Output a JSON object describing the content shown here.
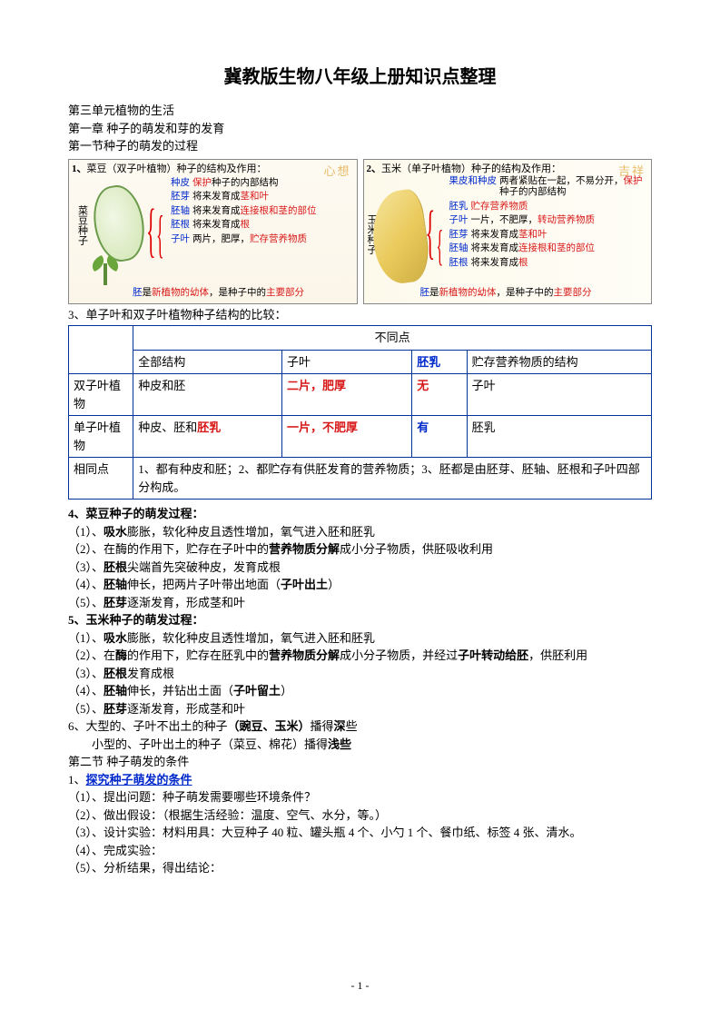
{
  "doc": {
    "title": "冀教版生物八年级上册知识点整理",
    "unit": "第三单元植物的生活",
    "chapter": "第一章 种子的萌发和芽的发育",
    "section1": "第一节种子的萌发的过程",
    "page_number": "- 1 -"
  },
  "colors": {
    "blue": "#0029cc",
    "red": "#d81818",
    "table_border": "#003399",
    "watermark": "#e0a030"
  },
  "diagram": {
    "left": {
      "title_num": "1、",
      "title_a": "菜豆（双子叶植物）种子的结构及作用：",
      "watermark": "心想",
      "side_label": "菜豆种子",
      "items": [
        {
          "label": "种皮",
          "lc": "blue",
          "desc_parts": [
            {
              "t": "保护",
              "c": "red"
            },
            {
              "t": "种子的内部结构",
              "c": "black"
            }
          ]
        },
        {
          "label": "胚芽",
          "lc": "blue",
          "desc_parts": [
            {
              "t": "将来发育成",
              "c": "black"
            },
            {
              "t": "茎和叶",
              "c": "red"
            }
          ]
        },
        {
          "label": "胚轴",
          "lc": "blue",
          "desc_parts": [
            {
              "t": "将来发育成",
              "c": "black"
            },
            {
              "t": "连接根和茎的部位",
              "c": "red"
            }
          ]
        },
        {
          "label": "胚根",
          "lc": "blue",
          "desc_parts": [
            {
              "t": "将来发育成",
              "c": "black"
            },
            {
              "t": "根",
              "c": "red"
            }
          ]
        },
        {
          "label": "子叶",
          "lc": "blue",
          "desc_parts": [
            {
              "t": "两片，肥厚，",
              "c": "black"
            },
            {
              "t": "贮存营养物质",
              "c": "red"
            }
          ]
        }
      ],
      "footer_parts": [
        {
          "t": "胚",
          "c": "blue"
        },
        {
          "t": "是",
          "c": "black"
        },
        {
          "t": "新植物的幼体",
          "c": "red"
        },
        {
          "t": "，是种子中的",
          "c": "black"
        },
        {
          "t": "主要部分",
          "c": "red"
        }
      ]
    },
    "right": {
      "title_num": "2、",
      "title_a": "玉米（单子叶植物）种子的结构及作用：",
      "watermark": "吉祥",
      "side_label": "玉米种子",
      "items": [
        {
          "label": "果皮和种皮",
          "lc": "blue",
          "desc_parts": [
            {
              "t": "两者紧贴在一起，不易分开，",
              "c": "black"
            },
            {
              "t": "保护",
              "c": "red"
            },
            {
              "t": "种子的内部结构",
              "c": "black"
            }
          ]
        },
        {
          "label": "胚乳",
          "lc": "blue",
          "desc_parts": [
            {
              "t": "贮存营养物质",
              "c": "red"
            }
          ]
        },
        {
          "label": "子叶",
          "lc": "blue",
          "desc_parts": [
            {
              "t": "一片，不肥厚，",
              "c": "black"
            },
            {
              "t": "转动营养物质",
              "c": "red"
            }
          ]
        },
        {
          "label": "胚芽",
          "lc": "blue",
          "desc_parts": [
            {
              "t": "将来发育成",
              "c": "black"
            },
            {
              "t": "茎和叶",
              "c": "red"
            }
          ]
        },
        {
          "label": "胚轴",
          "lc": "blue",
          "desc_parts": [
            {
              "t": "将来发育成",
              "c": "black"
            },
            {
              "t": "连接根和茎的部位",
              "c": "red"
            }
          ]
        },
        {
          "label": "胚根",
          "lc": "blue",
          "desc_parts": [
            {
              "t": "将来发育成",
              "c": "black"
            },
            {
              "t": "根",
              "c": "red"
            }
          ]
        }
      ],
      "footer_parts": [
        {
          "t": "胚",
          "c": "blue"
        },
        {
          "t": "是",
          "c": "black"
        },
        {
          "t": "新植物的幼体",
          "c": "red"
        },
        {
          "t": "，是种子中的",
          "c": "black"
        },
        {
          "t": "主要部分",
          "c": "red"
        }
      ]
    }
  },
  "table": {
    "heading": "3、单子叶和双子叶植物种子结构的比较：",
    "header_group": "不同点",
    "cols": [
      "全部结构",
      "子叶",
      "胚乳",
      "贮存营养物质的结构"
    ],
    "col_colors": [
      "black",
      "black",
      "blue",
      "black"
    ],
    "rows": [
      {
        "name": "双子叶植物",
        "cells": [
          {
            "t": "种皮和胚",
            "c": "black",
            "b": false
          },
          {
            "t": "二片，肥厚",
            "c": "red",
            "b": true
          },
          {
            "t": "无",
            "c": "red",
            "b": true
          },
          {
            "t": "子叶",
            "c": "black",
            "b": false
          }
        ]
      },
      {
        "name": "单子叶植物",
        "cells": [
          {
            "parts": [
              {
                "t": "种皮、胚和",
                "c": "black",
                "b": false
              },
              {
                "t": "胚乳",
                "c": "red",
                "b": true
              }
            ]
          },
          {
            "t": "一片，不肥厚",
            "c": "red",
            "b": true
          },
          {
            "t": "有",
            "c": "blue",
            "b": true
          },
          {
            "t": "胚乳",
            "c": "black",
            "b": false
          }
        ]
      }
    ],
    "same_label": "相同点",
    "same_text": "1、都有种皮和胚；2、都贮存有供胚发育的营养物质；3、胚都是由胚芽、胚轴、胚根和子叶四部分构成。"
  },
  "body": {
    "s4_title": "4、菜豆种子的萌发过程：",
    "s4": [
      [
        {
          "t": "（1）、",
          "b": false
        },
        {
          "t": "吸水",
          "b": true
        },
        {
          "t": "膨胀，软化种皮且透性增加，氧气进入胚和胚乳",
          "b": false
        }
      ],
      [
        {
          "t": "（2）、在酶的作用下，贮存在子叶中的",
          "b": false
        },
        {
          "t": "营养物质分解",
          "b": true
        },
        {
          "t": "成小分子物质，供胚吸收利用",
          "b": false
        }
      ],
      [
        {
          "t": "（3）、",
          "b": false
        },
        {
          "t": "胚根",
          "b": true
        },
        {
          "t": "尖端首先突破种皮，发育成根",
          "b": false
        }
      ],
      [
        {
          "t": "（4）、",
          "b": false
        },
        {
          "t": "胚轴",
          "b": true
        },
        {
          "t": "伸长，把两片子叶带出地面（",
          "b": false
        },
        {
          "t": "子叶出土",
          "b": true
        },
        {
          "t": "）",
          "b": false
        }
      ],
      [
        {
          "t": "（5）、",
          "b": false
        },
        {
          "t": "胚芽",
          "b": true
        },
        {
          "t": "逐渐发育，形成茎和叶",
          "b": false
        }
      ]
    ],
    "s5_title": "5、玉米种子的萌发过程：",
    "s5": [
      [
        {
          "t": "（1）、",
          "b": false
        },
        {
          "t": "吸水",
          "b": true
        },
        {
          "t": "膨胀，软化种皮且透性增加，氧气进入胚和胚乳",
          "b": false
        }
      ],
      [
        {
          "t": "（2）、在",
          "b": false
        },
        {
          "t": "酶",
          "b": true
        },
        {
          "t": "的作用下，贮存在胚乳中的",
          "b": false
        },
        {
          "t": "营养物质分解",
          "b": true
        },
        {
          "t": "成小分子物质，并经过",
          "b": false
        },
        {
          "t": "子叶转动给胚",
          "b": true
        },
        {
          "t": "，供胚利用",
          "b": false
        }
      ],
      [
        {
          "t": "（3）、",
          "b": false
        },
        {
          "t": "胚根",
          "b": true
        },
        {
          "t": "发育成根",
          "b": false
        }
      ],
      [
        {
          "t": "（4）、",
          "b": false
        },
        {
          "t": "胚轴",
          "b": true
        },
        {
          "t": "伸长，并钻出土面（",
          "b": false
        },
        {
          "t": "子叶留土",
          "b": true
        },
        {
          "t": "）",
          "b": false
        }
      ],
      [
        {
          "t": "（5）、",
          "b": false
        },
        {
          "t": "胚芽",
          "b": true
        },
        {
          "t": "逐渐发育，形成茎和叶",
          "b": false
        }
      ]
    ],
    "s6a": [
      {
        "t": "6、大型的、子叶不出土的种子",
        "b": false
      },
      {
        "t": "（豌豆、玉米）",
        "b": true
      },
      {
        "t": "播得",
        "b": false
      },
      {
        "t": "深",
        "b": true
      },
      {
        "t": "些",
        "b": false
      }
    ],
    "s6b": [
      {
        "t": "小型的、子叶出土的种子（菜豆、棉花）播得",
        "b": false
      },
      {
        "t": "浅些",
        "b": true
      }
    ],
    "section2": "第二节 种子萌发的条件",
    "inq_label": "1、",
    "inq_title": "探究种子萌发的条件",
    "inq": [
      "（1）、提出问题：种子萌发需要哪些环境条件？",
      "（2）、做出假设：（根据生活经验：温度、空气、水分，等。）",
      "（3）、设计实验：材料用具：大豆种子 40 粒、罐头瓶 4 个、小勺 1 个、餐巾纸、标签 4 张、清水。",
      "（4）、完成实验：",
      "（5）、分析结果，得出结论："
    ]
  }
}
